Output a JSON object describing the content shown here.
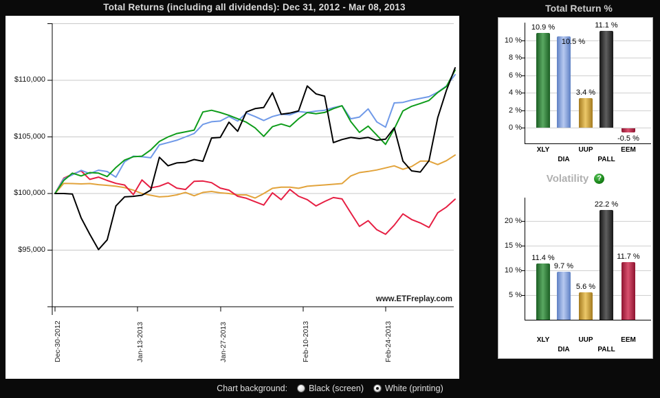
{
  "title_bar": {
    "title": "Total Returns (including all dividends): Dec 31, 2012 - Mar 08, 2013"
  },
  "bar_colors": {
    "XLY": {
      "edge": "#1b5e23",
      "mid": "#5aa862"
    },
    "DIA": {
      "edge": "#5e80c4",
      "mid": "#b7c9f0"
    },
    "UUP": {
      "edge": "#a47a1e",
      "mid": "#ecc869"
    },
    "PALL": {
      "edge": "#161616",
      "mid": "#5f5f5f"
    },
    "EEM": {
      "edge": "#8e1430",
      "mid": "#d9506e"
    }
  },
  "chart_data": [
    {
      "id": "total_returns_line",
      "type": "line",
      "title": "Total Returns (including all dividends): Dec 31, 2012 - Mar 08, 2013",
      "watermark": "www.ETFreplay.com",
      "grid": true,
      "legend_position": "none",
      "start_value": 100000,
      "ylim": [
        90000,
        115000
      ],
      "y_tick_labels": [
        "$110,000",
        "$105,000",
        "$100,000",
        "$95,000"
      ],
      "y_tick_values": [
        110000,
        105000,
        100000,
        95000
      ],
      "x_tick_labels": [
        "Dec-30-2012",
        "Jan-13-2013",
        "Jan-27-2013",
        "Feb-10-2013",
        "Feb-24-2013"
      ],
      "series": [
        {
          "name": "UUP",
          "color": "#e2a33b",
          "values": [
            100000,
            100900,
            100880,
            100850,
            100880,
            100780,
            100720,
            100640,
            100520,
            100300,
            100000,
            99850,
            99700,
            99750,
            99880,
            100100,
            99800,
            100100,
            100180,
            100060,
            100000,
            99880,
            99880,
            99600,
            100000,
            100460,
            100560,
            100560,
            100460,
            100640,
            100700,
            100760,
            100820,
            100880,
            101550,
            101850,
            101950,
            102080,
            102260,
            102440,
            102140,
            102380,
            102860,
            102860,
            102560,
            102900,
            103400
          ]
        },
        {
          "name": "EEM",
          "color": "#e61e42",
          "values": [
            100000,
            101350,
            101700,
            102000,
            101250,
            101450,
            101150,
            100900,
            100750,
            99900,
            101200,
            100500,
            100650,
            100950,
            100480,
            100360,
            101080,
            101100,
            100960,
            100480,
            100300,
            99760,
            99580,
            99280,
            98980,
            100060,
            99460,
            100360,
            99760,
            99460,
            98900,
            99300,
            99640,
            99520,
            98300,
            97100,
            97600,
            96800,
            96400,
            97200,
            98200,
            97700,
            97400,
            97000,
            98300,
            98800,
            99500
          ]
        },
        {
          "name": "DIA",
          "color": "#6f99e8",
          "values": [
            100000,
            101300,
            101650,
            102050,
            101760,
            102060,
            101940,
            101450,
            102800,
            103300,
            103250,
            103160,
            104300,
            104500,
            104700,
            105000,
            105300,
            106100,
            106340,
            106400,
            106800,
            106400,
            107100,
            106800,
            106450,
            106800,
            107000,
            106950,
            107240,
            107160,
            107280,
            107350,
            107590,
            107750,
            106600,
            106750,
            107470,
            106320,
            105860,
            108000,
            108050,
            108250,
            108400,
            108550,
            108950,
            109500,
            110500
          ]
        },
        {
          "name": "XLY",
          "color": "#0e9c1a",
          "values": [
            100000,
            101150,
            101800,
            101550,
            101850,
            101800,
            101500,
            102300,
            102950,
            103250,
            103300,
            103850,
            104600,
            105000,
            105300,
            105450,
            105600,
            107200,
            107350,
            107150,
            106900,
            106600,
            106300,
            105800,
            105050,
            105900,
            106140,
            105900,
            106600,
            107150,
            107040,
            107160,
            107500,
            107750,
            106360,
            105400,
            105950,
            105160,
            104340,
            105700,
            107300,
            107700,
            107950,
            108220,
            108920,
            109450,
            110900
          ]
        },
        {
          "name": "PALL",
          "color": "#000000",
          "values": [
            100000,
            100000,
            99950,
            97850,
            96400,
            95050,
            95900,
            98900,
            99700,
            99750,
            99850,
            100300,
            103200,
            102450,
            102700,
            102750,
            103000,
            102850,
            104900,
            104950,
            106300,
            105500,
            107200,
            107500,
            107600,
            108900,
            107000,
            107100,
            107300,
            109500,
            108800,
            108600,
            104500,
            104770,
            104950,
            104850,
            104950,
            104700,
            104800,
            105800,
            102860,
            102000,
            101900,
            102900,
            106700,
            109100,
            111100
          ]
        }
      ]
    },
    {
      "id": "total_return_bar",
      "type": "bar",
      "title": "Total Return %",
      "categories": [
        "XLY",
        "DIA",
        "UUP",
        "PALL",
        "EEM"
      ],
      "values": [
        10.9,
        10.5,
        3.4,
        11.1,
        -0.5
      ],
      "value_labels": [
        "10.9 %",
        "10.5 %",
        "3.4 %",
        "11.1 %",
        "-0.5 %"
      ],
      "y_tick_labels": [
        "0 %",
        "2 %",
        "4 %",
        "6 %",
        "8 %",
        "10 %"
      ],
      "y_tick_values": [
        0,
        2,
        4,
        6,
        8,
        10
      ],
      "ylim": [
        -1.6,
        12.1
      ],
      "grid": true
    },
    {
      "id": "volatility_bar",
      "type": "bar",
      "title": "Volatility",
      "help_glyph": "?",
      "categories": [
        "XLY",
        "DIA",
        "UUP",
        "PALL",
        "EEM"
      ],
      "values": [
        11.4,
        9.7,
        5.6,
        22.2,
        11.7
      ],
      "value_labels": [
        "11.4 %",
        "9.7 %",
        "5.6 %",
        "22.2 %",
        "11.7 %"
      ],
      "y_tick_labels": [
        "5 %",
        "10 %",
        "15 %",
        "20 %"
      ],
      "y_tick_values": [
        5,
        10,
        15,
        20
      ],
      "ylim": [
        0,
        25
      ],
      "grid": true
    }
  ],
  "footer": {
    "label": "Chart background:",
    "options": [
      {
        "label": "Black (screen)",
        "selected": false
      },
      {
        "label": "White (printing)",
        "selected": true
      }
    ]
  }
}
